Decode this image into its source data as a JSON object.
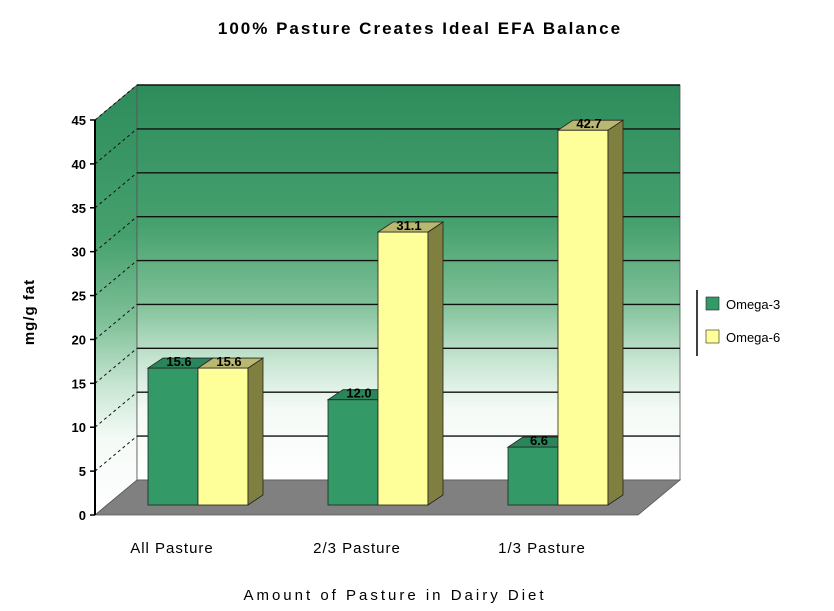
{
  "chart_data": {
    "type": "bar",
    "style": "3d-clustered-column",
    "title": "100% Pasture Creates Ideal EFA Balance",
    "xlabel": "Amount of Pasture in Dairy Diet",
    "ylabel": "mg/g fat",
    "categories": [
      "All Pasture",
      "2/3 Pasture",
      "1/3 Pasture"
    ],
    "series": [
      {
        "name": "Omega-3",
        "values": [
          15.6,
          12.0,
          6.6
        ],
        "color": "#339966",
        "side_color": "#22704A",
        "top_color": "#2B855A"
      },
      {
        "name": "Omega-6",
        "values": [
          15.6,
          31.1,
          42.7
        ],
        "color": "#FFFF99",
        "side_color": "#7F7F3F",
        "top_color": "#B8B870"
      }
    ],
    "ylim": [
      0,
      45
    ],
    "yticks": [
      0,
      5,
      10,
      15,
      20,
      25,
      30,
      35,
      40,
      45
    ],
    "data_labels": true,
    "grid": true,
    "legend": "right",
    "colors": {
      "wall_top": "#2E8C5C",
      "wall_bottom": "#FFFFFF",
      "floor": "#808080"
    }
  }
}
